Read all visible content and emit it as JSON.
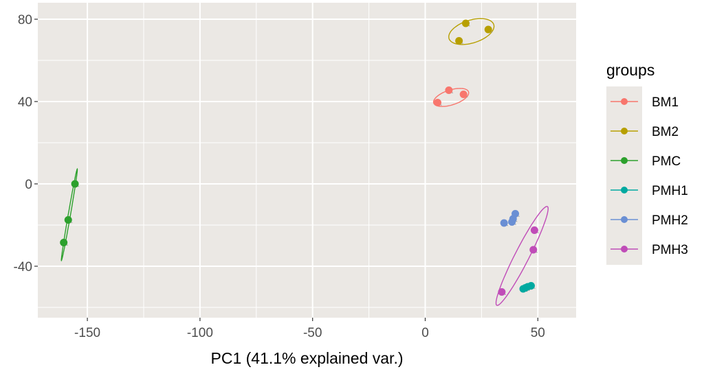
{
  "chart_data": {
    "type": "scatter",
    "title": "",
    "xlabel": "PC1 (41.1% explained var.)",
    "ylabel": "",
    "xlim": [
      -172,
      67
    ],
    "ylim": [
      -65,
      88
    ],
    "x_ticks": [
      -150,
      -100,
      -50,
      0,
      50
    ],
    "x_tick_labels": [
      "-150",
      "-100",
      "-50",
      "0",
      "50"
    ],
    "y_ticks": [
      -40,
      0,
      40,
      80
    ],
    "y_tick_labels": [
      "-40",
      "0",
      "40",
      "80"
    ],
    "grid": true,
    "background": "#EBE8E4",
    "legend": {
      "title": "groups",
      "placement": "right",
      "entries": [
        "BM1",
        "BM2",
        "PMC",
        "PMH1",
        "PMH2",
        "PMH3"
      ]
    },
    "series": [
      {
        "name": "BM1",
        "color": "#F8766D",
        "points": [
          [
            5.5,
            39.5
          ],
          [
            10.5,
            45.5
          ],
          [
            17,
            43.5
          ]
        ],
        "ellipse": {
          "cx": 11.5,
          "cy": 42,
          "rx": 8.2,
          "ry": 3.6,
          "angle_deg": 20
        }
      },
      {
        "name": "BM2",
        "color": "#B79F00",
        "points": [
          [
            15,
            69.5
          ],
          [
            18,
            78
          ],
          [
            28,
            75
          ]
        ],
        "ellipse": {
          "cx": 20.5,
          "cy": 74,
          "rx": 10.5,
          "ry": 5.5,
          "angle_deg": 20
        }
      },
      {
        "name": "PMC",
        "color": "#2CA02C",
        "points": [
          [
            -155.5,
            0
          ],
          [
            -158.5,
            -17.5
          ],
          [
            -160.5,
            -28.5
          ]
        ],
        "ellipse": {
          "cx": -158,
          "cy": -15,
          "rx": 22.5,
          "ry": 0.5,
          "angle_deg": 81
        }
      },
      {
        "name": "PMH1",
        "color": "#00A9A0",
        "points": [
          [
            43.5,
            -51
          ],
          [
            45.5,
            -50
          ],
          [
            47,
            -49.5
          ],
          [
            44.5,
            -50.5
          ]
        ],
        "ellipse": null
      },
      {
        "name": "PMH2",
        "color": "#6A8FD4",
        "points": [
          [
            35,
            -19
          ],
          [
            38.5,
            -18.5
          ],
          [
            40,
            -14.5
          ],
          [
            39,
            -17
          ]
        ],
        "ellipse": null
      },
      {
        "name": "PMH3",
        "color": "#C04CB8",
        "points": [
          [
            48.5,
            -22.5
          ],
          [
            48,
            -32
          ],
          [
            34,
            -52.5
          ]
        ],
        "ellipse": {
          "cx": 43,
          "cy": -35,
          "rx": 26.5,
          "ry": 3.2,
          "angle_deg": 65
        }
      }
    ]
  }
}
